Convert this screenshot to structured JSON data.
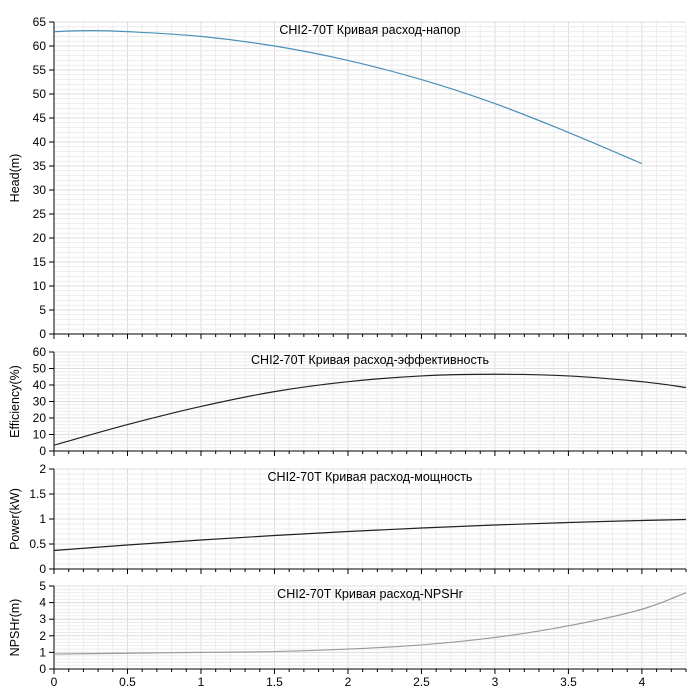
{
  "chart_data": [
    {
      "type": "line",
      "title": "CHI2-70T Кривая расход-напор",
      "ylabel": "Head(m)",
      "xlim": [
        0,
        4.3
      ],
      "ylim": [
        0,
        65
      ],
      "yticks": [
        0,
        5,
        10,
        15,
        20,
        25,
        30,
        35,
        40,
        45,
        50,
        55,
        60,
        65
      ],
      "grid": true,
      "series": [
        {
          "color": "#4a90b8",
          "x": [
            0,
            0.25,
            0.5,
            1.0,
            1.5,
            2.0,
            2.5,
            3.0,
            3.5,
            4.0
          ],
          "y": [
            63,
            63.2,
            63,
            62,
            60,
            57,
            53,
            48,
            42,
            35.5
          ]
        }
      ]
    },
    {
      "type": "line",
      "title": "CHI2-70T Кривая расход-эффективность",
      "ylabel": "Efficiency(%)",
      "xlim": [
        0,
        4.3
      ],
      "ylim": [
        0,
        60
      ],
      "yticks": [
        0,
        10,
        20,
        30,
        40,
        50,
        60
      ],
      "grid": true,
      "series": [
        {
          "color": "#222222",
          "x": [
            0,
            0.5,
            1.0,
            1.5,
            2.0,
            2.5,
            3.0,
            3.5,
            4.0,
            4.3
          ],
          "y": [
            3.5,
            16,
            27,
            36,
            42,
            45.5,
            46.5,
            45.5,
            42,
            38.5
          ]
        }
      ]
    },
    {
      "type": "line",
      "title": "CHI2-70T Кривая расход-мощность",
      "ylabel": "Power(kW)",
      "xlim": [
        0,
        4.3
      ],
      "ylim": [
        0,
        2
      ],
      "yticks": [
        0,
        0.5,
        1,
        1.5,
        2
      ],
      "ytick_labels": [
        "0",
        "0.5",
        "1",
        "1.5",
        "2"
      ],
      "grid": true,
      "series": [
        {
          "color": "#222222",
          "x": [
            0,
            0.5,
            1.0,
            1.5,
            2.0,
            2.5,
            3.0,
            3.5,
            4.0,
            4.3
          ],
          "y": [
            0.37,
            0.48,
            0.58,
            0.67,
            0.75,
            0.82,
            0.88,
            0.93,
            0.97,
            0.99
          ]
        }
      ]
    },
    {
      "type": "line",
      "title": "CHI2-70T Кривая расход-NPSHr",
      "ylabel": "NPSHr(m)",
      "xlim": [
        0,
        4.3
      ],
      "ylim": [
        0,
        5
      ],
      "yticks": [
        0,
        1,
        2,
        3,
        4,
        5
      ],
      "xticks": [
        0,
        0.5,
        1,
        1.5,
        2,
        2.5,
        3,
        3.5,
        4
      ],
      "xtick_labels": [
        "0",
        "0.5",
        "1",
        "1.5",
        "2",
        "2.5",
        "3",
        "3.5",
        "4"
      ],
      "grid": true,
      "series": [
        {
          "color": "#999999",
          "x": [
            0,
            0.5,
            1.0,
            1.5,
            2.0,
            2.5,
            3.0,
            3.5,
            4.0,
            4.3
          ],
          "y": [
            0.9,
            0.95,
            1.0,
            1.05,
            1.2,
            1.45,
            1.9,
            2.6,
            3.6,
            4.6
          ]
        }
      ]
    }
  ]
}
